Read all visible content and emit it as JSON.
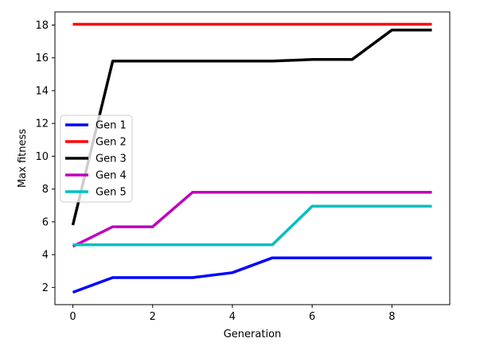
{
  "chart_data": {
    "type": "line",
    "title": "",
    "xlabel": "Generation",
    "ylabel": "Max fitness",
    "xlim": [
      -0.45,
      9.45
    ],
    "ylim": [
      0.95,
      18.8
    ],
    "xticks": [
      0,
      2,
      4,
      6,
      8
    ],
    "yticks": [
      2,
      4,
      6,
      8,
      10,
      12,
      14,
      16,
      18
    ],
    "grid": false,
    "legend_placement": "center-left",
    "x": [
      0,
      1,
      2,
      3,
      4,
      5,
      6,
      7,
      8,
      9
    ],
    "series": [
      {
        "name": "Gen 1",
        "color": "#0000ff",
        "values": [
          1.7,
          2.6,
          2.6,
          2.6,
          2.9,
          3.8,
          3.8,
          3.8,
          3.8,
          3.8
        ]
      },
      {
        "name": "Gen 2",
        "color": "#ff0000",
        "values": [
          18.05,
          18.05,
          18.05,
          18.05,
          18.05,
          18.05,
          18.05,
          18.05,
          18.05,
          18.05
        ]
      },
      {
        "name": "Gen 3",
        "color": "#000000",
        "values": [
          5.8,
          15.8,
          15.8,
          15.8,
          15.8,
          15.8,
          15.9,
          15.9,
          17.7,
          17.7
        ]
      },
      {
        "name": "Gen 4",
        "color": "#bf00bf",
        "values": [
          4.5,
          5.7,
          5.7,
          7.8,
          7.8,
          7.8,
          7.8,
          7.8,
          7.8,
          7.8
        ]
      },
      {
        "name": "Gen 5",
        "color": "#00bfbf",
        "values": [
          4.6,
          4.6,
          4.6,
          4.6,
          4.6,
          4.6,
          6.95,
          6.95,
          6.95,
          6.95
        ]
      }
    ]
  }
}
